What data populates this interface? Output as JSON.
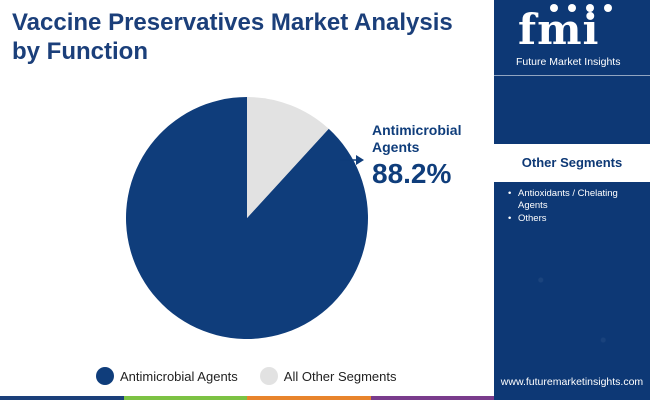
{
  "title": "Vaccine Preservatives Market Analysis by Function",
  "callout": {
    "label": "Antimicrobial Agents",
    "value": "88.2%"
  },
  "colors": {
    "primary": "#0f3d7b",
    "other": "#e2e2e2",
    "sidebar": "#0d3875"
  },
  "chart_data": {
    "type": "pie",
    "title": "Vaccine Preservatives Market Analysis by Function",
    "categories": [
      "Antimicrobial Agents",
      "All Other Segments"
    ],
    "values": [
      88.2,
      11.8
    ],
    "unit": "%",
    "legend_position": "bottom",
    "start_angle_deg": 0,
    "direction": "counterclockwise"
  },
  "legend": [
    {
      "label": "Antimicrobial Agents",
      "color": "#0f3d7b"
    },
    {
      "label": "All Other Segments",
      "color": "#e2e2e2"
    }
  ],
  "sidebar": {
    "logo_mark": "fmi",
    "logo_text": "Future Market Insights",
    "other_segments_heading": "Other Segments",
    "other_segments": [
      "Antioxidants / Chelating Agents",
      "Others"
    ],
    "website": "www.futuremarketinsights.com"
  },
  "bottom_bar_colors": [
    "#1b3f7a",
    "#7cc243",
    "#e8842c",
    "#7a3c8c"
  ]
}
